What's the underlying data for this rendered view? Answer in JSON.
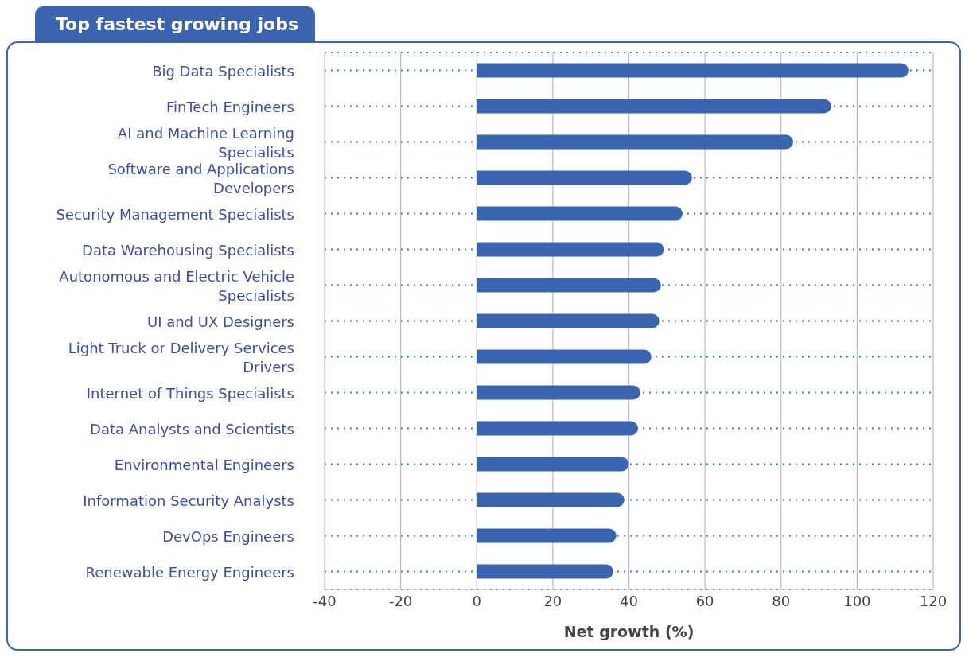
{
  "chart_data": {
    "type": "bar",
    "orientation": "horizontal",
    "title": "Top fastest growing jobs",
    "xlabel": "Net growth (%)",
    "categories": [
      "Big Data Specialists",
      "FinTech Engineers",
      "AI and Machine Learning Specialists",
      "Software and Applications Developers",
      "Security Management Specialists",
      "Data Warehousing Specialists",
      "Autonomous and Electric Vehicle Specialists",
      "UI and UX Designers",
      "Light Truck or Delivery Services Drivers",
      "Internet of Things Specialists",
      "Data Analysts and Scientists",
      "Environmental Engineers",
      "Information Security Analysts",
      "DevOps Engineers",
      "Renewable Energy Engineers"
    ],
    "values": [
      113.5,
      93.2,
      83.2,
      56.6,
      54.1,
      49.2,
      48.4,
      48,
      45.9,
      43,
      42.4,
      40,
      38.8,
      36.7,
      35.9
    ],
    "color": "#3a64b0",
    "xlim": [
      -40,
      120
    ],
    "xticks": [
      -40,
      -20,
      0,
      20,
      40,
      60,
      80,
      100,
      120
    ],
    "grid": true
  }
}
